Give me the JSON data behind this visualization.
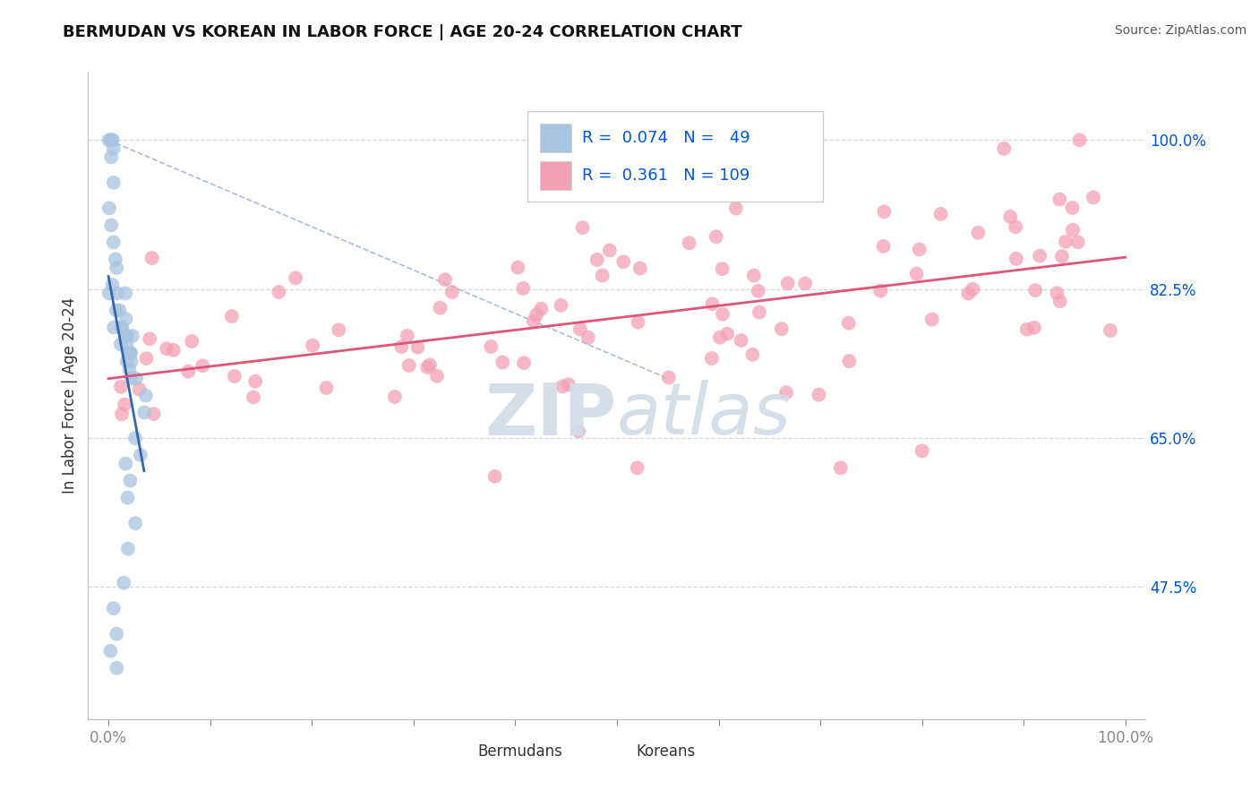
{
  "title": "BERMUDAN VS KOREAN IN LABOR FORCE | AGE 20-24 CORRELATION CHART",
  "source_text": "Source: ZipAtlas.com",
  "ylabel": "In Labor Force | Age 20-24",
  "xlim": [
    -0.02,
    1.02
  ],
  "ylim": [
    0.32,
    1.08
  ],
  "ytick_positions": [
    0.475,
    0.65,
    0.825,
    1.0
  ],
  "ytick_labels": [
    "47.5%",
    "65.0%",
    "82.5%",
    "100.0%"
  ],
  "bermudan_R": 0.074,
  "bermudan_N": 49,
  "korean_R": 0.361,
  "korean_N": 109,
  "bermudan_color": "#a8c4e0",
  "korean_color": "#f4a0b5",
  "bermudan_line_color": "#3366aa",
  "korean_line_color": "#dd5577",
  "diagonal_color": "#aabbdd",
  "grid_color": "#cccccc",
  "watermark_color": "#d0dce8",
  "legend_color": "#0055cc",
  "title_color": "#111111",
  "source_color": "#555555",
  "axis_label_color": "#333333",
  "tick_color": "#0055cc"
}
